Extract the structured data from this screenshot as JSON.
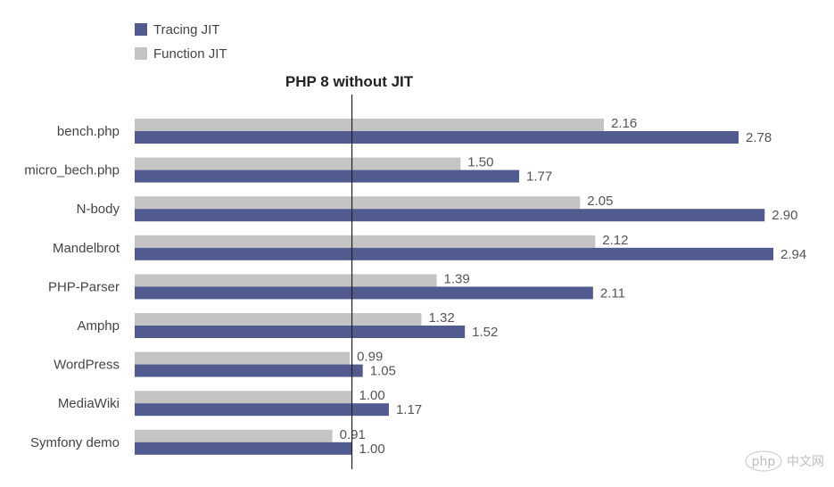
{
  "chart_data": {
    "type": "bar",
    "orientation": "horizontal",
    "title": "",
    "xlabel": "",
    "ylabel": "",
    "xlim": [
      0,
      3.0
    ],
    "reference_line": {
      "value": 1.0,
      "label": "PHP 8 without JIT"
    },
    "categories": [
      "bench.php",
      "micro_bech.php",
      "N-body",
      "Mandelbrot",
      "PHP-Parser",
      "Amphp",
      "WordPress",
      "MediaWiki",
      "Symfony demo"
    ],
    "series": [
      {
        "name": "Function JIT",
        "color": "#c4c4c4",
        "values": [
          2.16,
          1.5,
          2.05,
          2.12,
          1.39,
          1.32,
          0.99,
          1.0,
          0.91
        ],
        "labels": [
          "2.16",
          "1.50",
          "2.05",
          "2.12",
          "1.39",
          "1.32",
          "0.99",
          "1.00",
          "0.91"
        ]
      },
      {
        "name": "Tracing JIT",
        "color": "#525b90",
        "values": [
          2.78,
          1.77,
          2.9,
          2.94,
          2.11,
          1.52,
          1.05,
          1.17,
          1.0
        ],
        "labels": [
          "2.78",
          "1.77",
          "2.90",
          "2.94",
          "2.11",
          "1.52",
          "1.05",
          "1.17",
          "1.00"
        ]
      }
    ],
    "legend": {
      "position": "top-left",
      "order": [
        "Tracing JIT",
        "Function JIT"
      ]
    }
  },
  "watermark": {
    "logo_text": "php",
    "site_text": "中文网"
  }
}
